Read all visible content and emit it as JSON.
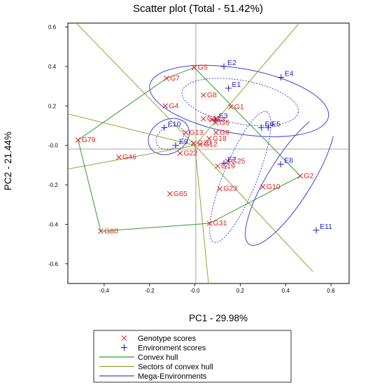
{
  "chart_data": {
    "type": "scatter",
    "title": "Scatter plot (Total - 51.42%)",
    "xlabel": "PC1 - 29.98%",
    "ylabel": "PC2 - 21.44%",
    "xlim": [
      -0.56,
      0.68
    ],
    "ylim": [
      -0.7,
      0.62
    ],
    "xticks": [
      {
        "v": -0.4,
        "label": "-0.4"
      },
      {
        "v": -0.2,
        "label": "-0.2"
      },
      {
        "v": 0.0,
        "label": "-0.0"
      },
      {
        "v": 0.2,
        "label": "0.2"
      },
      {
        "v": 0.4,
        "label": "0.4"
      },
      {
        "v": 0.6,
        "label": "0.6"
      }
    ],
    "yticks": [
      {
        "v": 0.6,
        "label": "0.6"
      },
      {
        "v": 0.4,
        "label": "0.4"
      },
      {
        "v": 0.2,
        "label": "0.2"
      },
      {
        "v": 0.0,
        "label": "-0.0"
      },
      {
        "v": -0.2,
        "label": "-0.2"
      },
      {
        "v": -0.4,
        "label": "-0.4"
      },
      {
        "v": -0.6,
        "label": "-0.6"
      }
    ],
    "colors": {
      "genotype": "#e02020",
      "environment": "#1a1ad8",
      "hull": "#2e9a2e",
      "sectors": "#9aa030",
      "mega": "#4040e0"
    },
    "genotypes": [
      {
        "label": "G5",
        "x": -0.003,
        "y": 0.395
      },
      {
        "label": "G7",
        "x": -0.125,
        "y": 0.34
      },
      {
        "label": "G8",
        "x": 0.038,
        "y": 0.255
      },
      {
        "label": "G4",
        "x": -0.13,
        "y": 0.2
      },
      {
        "label": "G1",
        "x": 0.158,
        "y": 0.195
      },
      {
        "label": "G11",
        "x": 0.038,
        "y": 0.135
      },
      {
        "label": "G3",
        "x": 0.075,
        "y": 0.13
      },
      {
        "label": "G6",
        "x": 0.093,
        "y": 0.115
      },
      {
        "label": "G13",
        "x": -0.04,
        "y": 0.065
      },
      {
        "label": "G9",
        "x": 0.093,
        "y": 0.065
      },
      {
        "label": "G18",
        "x": 0.063,
        "y": 0.035
      },
      {
        "label": "G30",
        "x": -0.005,
        "y": 0.012
      },
      {
        "label": "G12",
        "x": 0.023,
        "y": 0.005
      },
      {
        "label": "G22",
        "x": -0.065,
        "y": -0.04
      },
      {
        "label": "G46",
        "x": -0.335,
        "y": -0.06
      },
      {
        "label": "G79",
        "x": -0.515,
        "y": 0.027
      },
      {
        "label": "G25",
        "x": 0.145,
        "y": -0.08
      },
      {
        "label": "G19",
        "x": 0.1,
        "y": -0.105
      },
      {
        "label": "G2",
        "x": 0.465,
        "y": -0.155
      },
      {
        "label": "G10",
        "x": 0.3,
        "y": -0.21
      },
      {
        "label": "G23",
        "x": 0.11,
        "y": -0.22
      },
      {
        "label": "G65",
        "x": -0.11,
        "y": -0.245
      },
      {
        "label": "G31",
        "x": 0.065,
        "y": -0.395
      },
      {
        "label": "G80",
        "x": -0.415,
        "y": -0.435
      }
    ],
    "environments": [
      {
        "label": "E2",
        "x": 0.128,
        "y": 0.4
      },
      {
        "label": "E1",
        "x": 0.148,
        "y": 0.29
      },
      {
        "label": "E4",
        "x": 0.38,
        "y": 0.345
      },
      {
        "label": "E3",
        "x": 0.09,
        "y": 0.13
      },
      {
        "label": "E6",
        "x": 0.293,
        "y": 0.09
      },
      {
        "label": "E5",
        "x": 0.323,
        "y": 0.09
      },
      {
        "label": "E10",
        "x": -0.135,
        "y": 0.09
      },
      {
        "label": "E9",
        "x": -0.085,
        "y": 0.0
      },
      {
        "label": "E7",
        "x": 0.128,
        "y": -0.09
      },
      {
        "label": "E8",
        "x": 0.378,
        "y": -0.095
      },
      {
        "label": "E11",
        "x": 0.535,
        "y": -0.43
      }
    ],
    "convex_hull": [
      [
        -0.003,
        0.395
      ],
      [
        0.465,
        -0.155
      ],
      [
        0.065,
        -0.395
      ],
      [
        -0.415,
        -0.435
      ],
      [
        -0.515,
        0.027
      ],
      [
        -0.125,
        0.34
      ],
      [
        -0.003,
        0.395
      ]
    ],
    "sectors": [
      {
        "from": [
          0.0,
          0.0
        ],
        "to": [
          -0.56,
          -0.12
        ]
      },
      {
        "from": [
          0.0,
          0.0
        ],
        "to": [
          -0.56,
          0.16
        ]
      },
      {
        "from": [
          0.0,
          0.0
        ],
        "to": [
          -0.54,
          0.64
        ]
      },
      {
        "from": [
          0.0,
          0.0
        ],
        "to": [
          0.46,
          0.62
        ]
      },
      {
        "from": [
          0.0,
          0.0
        ],
        "to": [
          0.52,
          -0.64
        ]
      },
      {
        "from": [
          0.0,
          0.0
        ],
        "to": [
          0.06,
          -0.7
        ]
      }
    ],
    "mega_environments": [
      {
        "style": "solid",
        "cx": 0.42,
        "cy": -0.17,
        "rx": 0.34,
        "ry": 0.11,
        "angle": -58
      },
      {
        "style": "solid",
        "cx": 0.195,
        "cy": 0.225,
        "rx": 0.4,
        "ry": 0.165,
        "angle": 10
      },
      {
        "style": "dotted",
        "cx": 0.2,
        "cy": 0.22,
        "rx": 0.26,
        "ry": 0.11,
        "angle": 10
      },
      {
        "style": "dotted",
        "cx": 0.2,
        "cy": -0.16,
        "rx": 0.31,
        "ry": 0.085,
        "angle": -68
      },
      {
        "style": "solid",
        "cx": -0.115,
        "cy": 0.045,
        "rx": 0.095,
        "ry": 0.085,
        "angle": -30
      },
      {
        "style": "dotted",
        "cx": -0.11,
        "cy": 0.04,
        "rx": 0.065,
        "ry": 0.055,
        "angle": -30
      }
    ],
    "legend": {
      "placement": "bottom",
      "items": [
        {
          "key": "genotype",
          "marker": "x",
          "label": "Genotype scores"
        },
        {
          "key": "environment",
          "marker": "plus",
          "label": "Environment scores"
        },
        {
          "key": "hull",
          "marker": "line",
          "label": "Convex hull"
        },
        {
          "key": "sectors",
          "marker": "line",
          "label": "Sectors of convex hull"
        },
        {
          "key": "mega",
          "marker": "line",
          "label": "Mega-Environments"
        }
      ]
    }
  }
}
